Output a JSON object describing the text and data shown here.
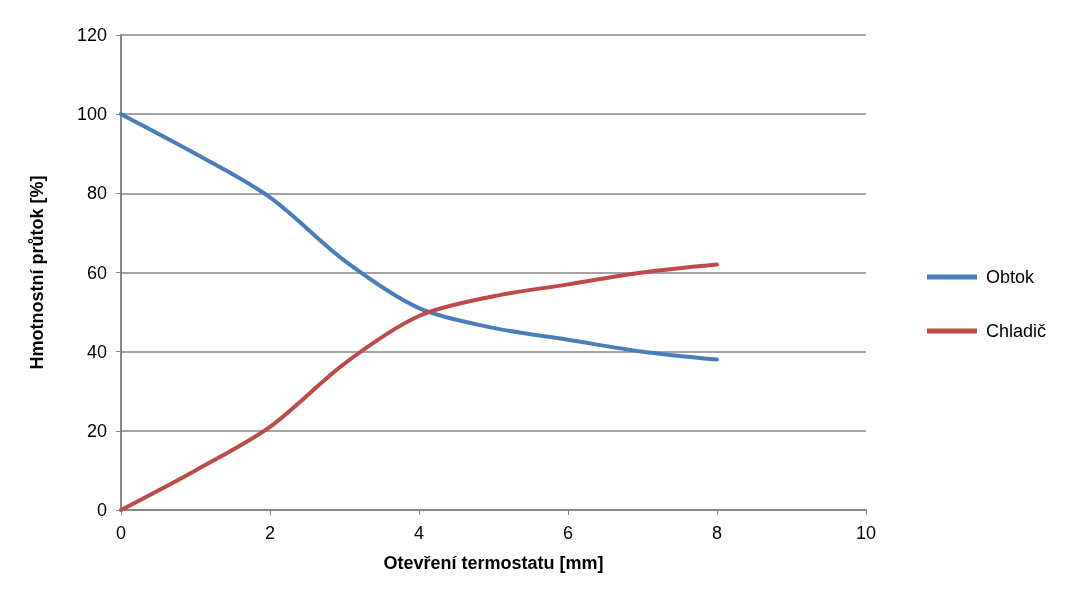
{
  "chart_data": {
    "type": "line",
    "xlabel": "Otevření termostatu [mm]",
    "ylabel": "Hmotnostní průtok [%]",
    "x": [
      0,
      1,
      2,
      3,
      4,
      5,
      6,
      7,
      8
    ],
    "xlim": [
      0,
      10
    ],
    "xticks": [
      0,
      2,
      4,
      6,
      8,
      10
    ],
    "ylim": [
      0,
      120
    ],
    "yticks": [
      0,
      20,
      40,
      60,
      80,
      100,
      120
    ],
    "grid": "y",
    "legend": "right",
    "marker": "none",
    "line_style": "solid",
    "series": [
      {
        "name": "Obtok",
        "color": "#4a7ebb",
        "values": [
          100,
          90,
          79,
          63,
          51,
          46,
          43,
          40,
          38
        ]
      },
      {
        "name": "Chladič",
        "color": "#be4b48",
        "values": [
          0,
          10,
          21,
          37,
          49,
          54,
          57,
          60,
          62
        ]
      }
    ]
  }
}
